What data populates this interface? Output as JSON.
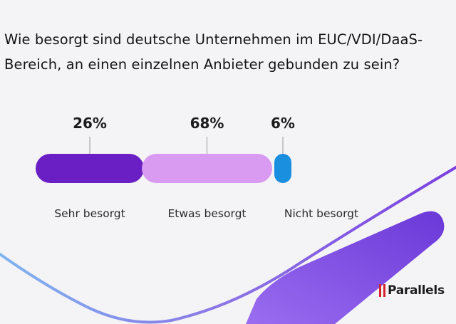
{
  "title": "Wie besorgt sind deutsche Unternehmen im EUC/VDI/DaaS-Bereich, an einen einzelnen Anbieter gebunden zu sein?",
  "chart_data": {
    "type": "bar",
    "orientation": "horizontal-stacked",
    "categories": [
      "Sehr besorgt",
      "Etwas besorgt",
      "Nicht besorgt"
    ],
    "values": [
      26,
      68,
      6
    ],
    "value_labels": [
      "26%",
      "68%",
      "6%"
    ],
    "unit": "%",
    "colors": [
      "#6a1fc4",
      "#d99af2",
      "#1a8fe0"
    ]
  },
  "brand": {
    "name": "Parallels",
    "color": "#d6222a"
  }
}
